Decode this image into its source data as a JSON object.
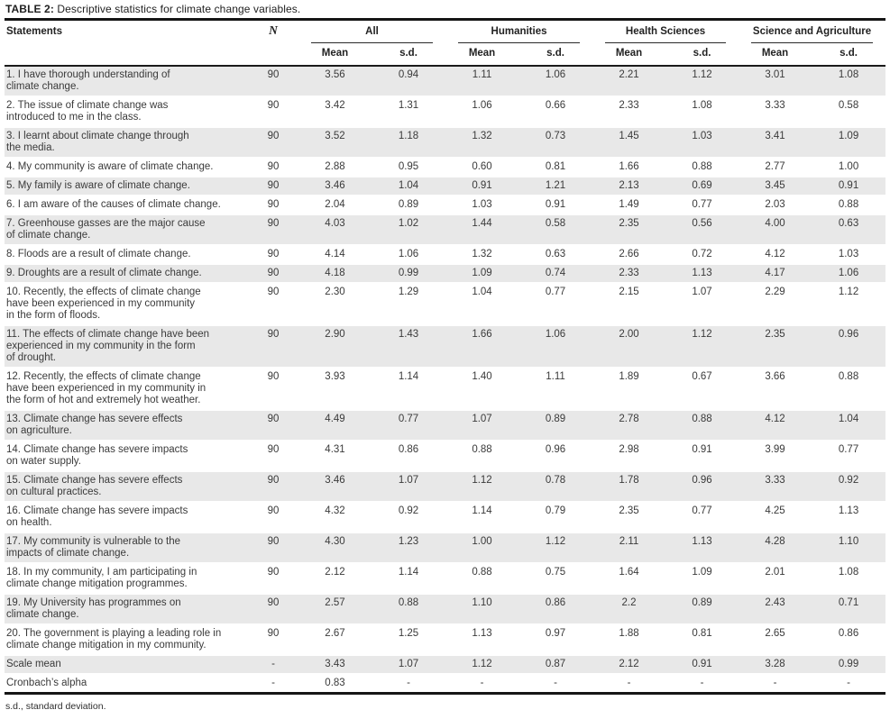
{
  "title": {
    "label": "TABLE 2:",
    "text": "Descriptive statistics for climate change variables."
  },
  "footnote": "s.d., standard deviation.",
  "colors": {
    "stripe": "#e8e8e8",
    "rule": "#151515",
    "text": "#3a3a3a"
  },
  "table": {
    "columns": {
      "statements": "Statements",
      "n": "N",
      "mean": "Mean",
      "sd": "s.d.",
      "groups": [
        {
          "label": "All"
        },
        {
          "label": "Humanities"
        },
        {
          "label": "Health Sciences"
        },
        {
          "label": "Science and Agriculture"
        }
      ]
    },
    "rows": [
      {
        "statement": "1. I have thorough understanding of\nclimate change.",
        "n": "90",
        "values": [
          "3.56",
          "0.94",
          "1.11",
          "1.06",
          "2.21",
          "1.12",
          "3.01",
          "1.08"
        ]
      },
      {
        "statement": "2. The issue of climate change was\nintroduced to me in the class.",
        "n": "90",
        "values": [
          "3.42",
          "1.31",
          "1.06",
          "0.66",
          "2.33",
          "1.08",
          "3.33",
          "0.58"
        ]
      },
      {
        "statement": "3. I learnt about climate change through\nthe media.",
        "n": "90",
        "values": [
          "3.52",
          "1.18",
          "1.32",
          "0.73",
          "1.45",
          "1.03",
          "3.41",
          "1.09"
        ]
      },
      {
        "statement": "4. My community is aware of climate change.",
        "n": "90",
        "values": [
          "2.88",
          "0.95",
          "0.60",
          "0.81",
          "1.66",
          "0.88",
          "2.77",
          "1.00"
        ]
      },
      {
        "statement": "5. My family is aware of climate change.",
        "n": "90",
        "values": [
          "3.46",
          "1.04",
          "0.91",
          "1.21",
          "2.13",
          "0.69",
          "3.45",
          "0.91"
        ]
      },
      {
        "statement": "6. I am aware of the causes of climate change.",
        "n": "90",
        "values": [
          "2.04",
          "0.89",
          "1.03",
          "0.91",
          "1.49",
          "0.77",
          "2.03",
          "0.88"
        ]
      },
      {
        "statement": "7. Greenhouse gasses are the major cause\nof climate change.",
        "n": "90",
        "values": [
          "4.03",
          "1.02",
          "1.44",
          "0.58",
          "2.35",
          "0.56",
          "4.00",
          "0.63"
        ]
      },
      {
        "statement": "8. Floods are a result of climate change.",
        "n": "90",
        "values": [
          "4.14",
          "1.06",
          "1.32",
          "0.63",
          "2.66",
          "0.72",
          "4.12",
          "1.03"
        ]
      },
      {
        "statement": "9. Droughts are a result of climate change.",
        "n": "90",
        "values": [
          "4.18",
          "0.99",
          "1.09",
          "0.74",
          "2.33",
          "1.13",
          "4.17",
          "1.06"
        ]
      },
      {
        "statement": "10. Recently, the effects of climate change\nhave been experienced in my community\nin the form of floods.",
        "n": "90",
        "values": [
          "2.30",
          "1.29",
          "1.04",
          "0.77",
          "2.15",
          "1.07",
          "2.29",
          "1.12"
        ]
      },
      {
        "statement": "11. The effects of climate change have been\nexperienced in my community in the form\nof drought.",
        "n": "90",
        "values": [
          "2.90",
          "1.43",
          "1.66",
          "1.06",
          "2.00",
          "1.12",
          "2.35",
          "0.96"
        ]
      },
      {
        "statement": "12. Recently, the effects of climate change\nhave been experienced in my community in\nthe form of hot and extremely hot weather.",
        "n": "90",
        "values": [
          "3.93",
          "1.14",
          "1.40",
          "1.11",
          "1.89",
          "0.67",
          "3.66",
          "0.88"
        ]
      },
      {
        "statement": "13. Climate change has severe effects\non agriculture.",
        "n": "90",
        "values": [
          "4.49",
          "0.77",
          "1.07",
          "0.89",
          "2.78",
          "0.88",
          "4.12",
          "1.04"
        ]
      },
      {
        "statement": "14. Climate change has severe impacts\non water supply.",
        "n": "90",
        "values": [
          "4.31",
          "0.86",
          "0.88",
          "0.96",
          "2.98",
          "0.91",
          "3.99",
          "0.77"
        ]
      },
      {
        "statement": "15. Climate change has severe effects\non cultural practices.",
        "n": "90",
        "values": [
          "3.46",
          "1.07",
          "1.12",
          "0.78",
          "1.78",
          "0.96",
          "3.33",
          "0.92"
        ]
      },
      {
        "statement": "16. Climate change has severe impacts\non health.",
        "n": "90",
        "values": [
          "4.32",
          "0.92",
          "1.14",
          "0.79",
          "2.35",
          "0.77",
          "4.25",
          "1.13"
        ]
      },
      {
        "statement": "17. My community is vulnerable to the\nimpacts of climate change.",
        "n": "90",
        "values": [
          "4.30",
          "1.23",
          "1.00",
          "1.12",
          "2.11",
          "1.13",
          "4.28",
          "1.10"
        ]
      },
      {
        "statement": "18. In my community, I am participating in\nclimate change mitigation programmes.",
        "n": "90",
        "values": [
          "2.12",
          "1.14",
          "0.88",
          "0.75",
          "1.64",
          "1.09",
          "2.01",
          "1.08"
        ]
      },
      {
        "statement": "19. My University has programmes on\nclimate change.",
        "n": "90",
        "values": [
          "2.57",
          "0.88",
          "1.10",
          "0.86",
          "2.2",
          "0.89",
          "2.43",
          "0.71"
        ]
      },
      {
        "statement": "20. The government is playing a leading role in\nclimate change mitigation in my community.",
        "n": "90",
        "values": [
          "2.67",
          "1.25",
          "1.13",
          "0.97",
          "1.88",
          "0.81",
          "2.65",
          "0.86"
        ]
      },
      {
        "statement": "Scale mean",
        "n": "-",
        "values": [
          "3.43",
          "1.07",
          "1.12",
          "0.87",
          "2.12",
          "0.91",
          "3.28",
          "0.99"
        ]
      },
      {
        "statement": "Cronbach’s alpha",
        "n": "-",
        "values": [
          "0.83",
          "-",
          "-",
          "-",
          "-",
          "-",
          "-",
          "-"
        ]
      }
    ]
  }
}
